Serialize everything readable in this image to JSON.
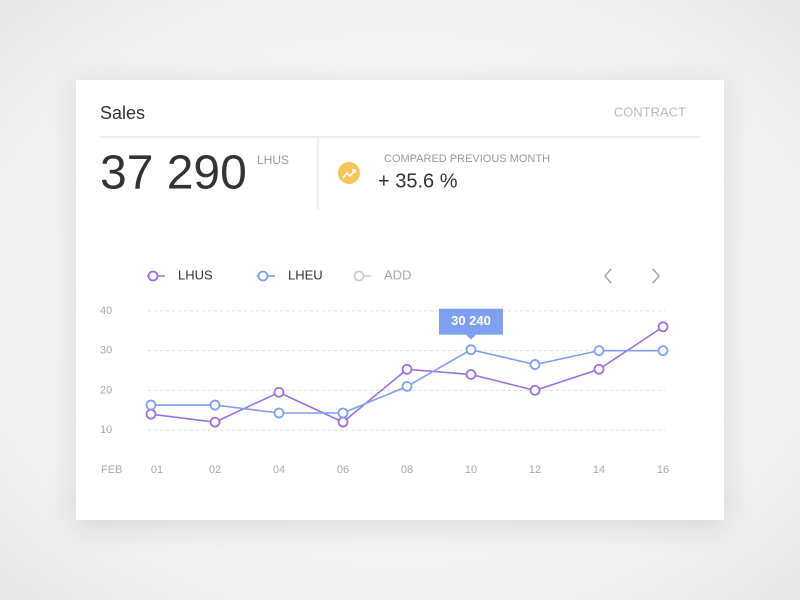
{
  "header": {
    "title": "Sales",
    "action": "CONTRACT"
  },
  "summary": {
    "total": "37 290",
    "unit": "LHUS",
    "compare_label": "COMPARED PREVIOUS MONTH",
    "change": "+ 35.6 %"
  },
  "chart_data": {
    "type": "line",
    "xlabel": "FEB",
    "categories": [
      "01",
      "02",
      "04",
      "06",
      "08",
      "10",
      "12",
      "14",
      "16"
    ],
    "series": [
      {
        "name": "LHUS",
        "color": "#9b72e0",
        "values": [
          14,
          12,
          19.5,
          12,
          25.3,
          24,
          20,
          25.3,
          36
        ]
      },
      {
        "name": "LHEU",
        "color": "#7f9ff0",
        "values": [
          16.3,
          16.3,
          14.3,
          14.3,
          21,
          30.24,
          26.5,
          30,
          30
        ],
        "value_labels": [
          null,
          null,
          null,
          null,
          null,
          "30 240",
          null,
          null,
          null
        ]
      }
    ],
    "legend_extra": {
      "name": "ADD",
      "color": "#cccccc"
    },
    "ylim": [
      7,
      43
    ],
    "yticks": [
      10,
      20,
      30,
      40
    ],
    "grid": true
  }
}
